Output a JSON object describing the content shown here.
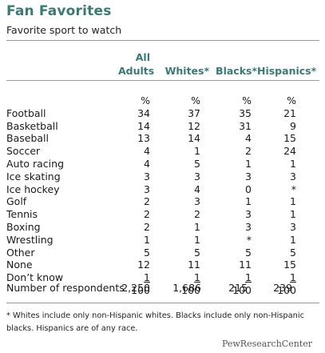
{
  "chart_data": {
    "type": "table",
    "title": "Fan Favorites",
    "subtitle": "Favorite sport to watch",
    "columns": [
      "All Adults",
      "Whites*",
      "Blacks*",
      "Hispanics*"
    ],
    "column_line1": [
      "All",
      "",
      "",
      ""
    ],
    "column_line2": [
      "Adults",
      "Whites*",
      "Blacks*",
      "Hispanics*"
    ],
    "unit_row": [
      "%",
      "%",
      "%",
      "%"
    ],
    "rows": [
      {
        "label": "Football",
        "values": [
          "34",
          "37",
          "35",
          "21"
        ]
      },
      {
        "label": "Basketball",
        "values": [
          "14",
          "12",
          "31",
          "9"
        ]
      },
      {
        "label": "Baseball",
        "values": [
          "13",
          "14",
          "4",
          "15"
        ]
      },
      {
        "label": "Soccer",
        "values": [
          "4",
          "1",
          "2",
          "24"
        ]
      },
      {
        "label": "Auto racing",
        "values": [
          "4",
          "5",
          "1",
          "1"
        ]
      },
      {
        "label": "Ice skating",
        "values": [
          "3",
          "3",
          "3",
          "3"
        ]
      },
      {
        "label": "Ice hockey",
        "values": [
          "3",
          "4",
          "0",
          "*"
        ]
      },
      {
        "label": "Golf",
        "values": [
          "2",
          "3",
          "1",
          "1"
        ]
      },
      {
        "label": "Tennis",
        "values": [
          "2",
          "2",
          "3",
          "1"
        ]
      },
      {
        "label": "Boxing",
        "values": [
          "2",
          "1",
          "3",
          "3"
        ]
      },
      {
        "label": "Wrestling",
        "values": [
          "1",
          "1",
          "*",
          "1"
        ]
      },
      {
        "label": "Other",
        "values": [
          "5",
          "5",
          "5",
          "5"
        ]
      },
      {
        "label": "None",
        "values": [
          "12",
          "11",
          "11",
          "15"
        ]
      },
      {
        "label": "Don’t know",
        "values": [
          "1",
          "1",
          "1",
          "1"
        ]
      }
    ],
    "totals": [
      "100",
      "100",
      "100",
      "100"
    ],
    "respondents_label": "Number of respondents",
    "respondents": [
      "2,250",
      "1,686",
      "215",
      "239"
    ],
    "footnote": "* Whites include only non-Hispanic whites. Blacks include only non-Hispanic blacks. Hispanics are of any race."
  },
  "brand": {
    "name": "PewResearchCenter",
    "accent_color": "#3a7a76"
  }
}
